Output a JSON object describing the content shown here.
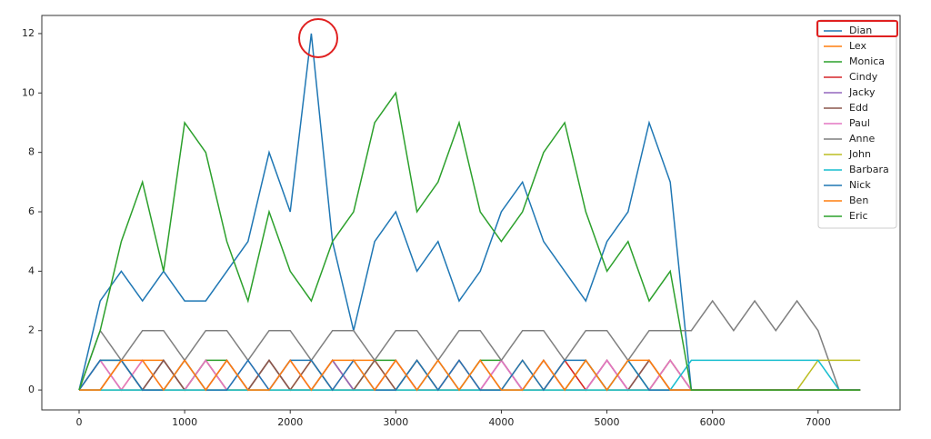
{
  "chart_data": {
    "type": "line",
    "x": [
      0,
      200,
      400,
      600,
      800,
      1000,
      1200,
      1400,
      1600,
      1800,
      2000,
      2200,
      2400,
      2600,
      2800,
      3000,
      3200,
      3400,
      3600,
      3800,
      4000,
      4200,
      4400,
      4600,
      4800,
      5000,
      5200,
      5400,
      5600,
      5800,
      6000,
      6200,
      6400,
      6600,
      6800,
      7000,
      7200,
      7400
    ],
    "xlim": [
      -353,
      7777
    ],
    "xticks": [
      0,
      1000,
      2000,
      3000,
      4000,
      5000,
      6000,
      7000
    ],
    "ylim": [
      -0.67,
      12.61
    ],
    "yticks": [
      0,
      2,
      4,
      6,
      8,
      10,
      12
    ],
    "legend": "upper right",
    "series": [
      {
        "name": "Dian",
        "color": "#1f77b4",
        "values": [
          0,
          3,
          4,
          3,
          4,
          3,
          3,
          4,
          5,
          8,
          6,
          12,
          5,
          2,
          5,
          6,
          4,
          5,
          3,
          4,
          6,
          7,
          5,
          4,
          3,
          5,
          6,
          9,
          7,
          0,
          0,
          0,
          0,
          0,
          0,
          0,
          0,
          0
        ]
      },
      {
        "name": "Lex",
        "color": "#ff7f0e",
        "values": [
          0,
          1,
          0,
          1,
          1,
          0,
          1,
          0,
          0,
          1,
          0,
          1,
          0,
          1,
          1,
          0,
          1,
          0,
          1,
          0,
          0,
          1,
          0,
          1,
          0,
          1,
          0,
          1,
          0,
          0,
          0,
          0,
          0,
          0,
          0,
          0,
          0,
          0
        ]
      },
      {
        "name": "Monica",
        "color": "#2ca02c",
        "values": [
          0,
          1,
          1,
          0,
          1,
          0,
          1,
          1,
          0,
          1,
          0,
          0,
          1,
          0,
          1,
          1,
          0,
          1,
          0,
          1,
          1,
          0,
          1,
          0,
          1,
          0,
          1,
          0,
          1,
          0,
          0,
          0,
          0,
          0,
          0,
          0,
          0,
          0
        ]
      },
      {
        "name": "Cindy",
        "color": "#d62728",
        "values": [
          0,
          0,
          1,
          0,
          0,
          1,
          0,
          1,
          0,
          0,
          1,
          0,
          1,
          0,
          0,
          1,
          0,
          0,
          1,
          0,
          1,
          0,
          0,
          1,
          0,
          1,
          0,
          0,
          1,
          0,
          0,
          0,
          0,
          0,
          0,
          0,
          0,
          0
        ]
      },
      {
        "name": "Jacky",
        "color": "#9467bd",
        "values": [
          0,
          1,
          0,
          0,
          1,
          0,
          0,
          1,
          0,
          1,
          0,
          0,
          1,
          0,
          0,
          1,
          0,
          1,
          0,
          0,
          1,
          0,
          1,
          0,
          0,
          1,
          0,
          1,
          0,
          0,
          0,
          0,
          0,
          0,
          0,
          0,
          0,
          0
        ]
      },
      {
        "name": "Edd",
        "color": "#8c564b",
        "values": [
          0,
          0,
          1,
          0,
          1,
          0,
          1,
          0,
          0,
          1,
          0,
          1,
          0,
          0,
          1,
          0,
          1,
          0,
          0,
          1,
          0,
          0,
          1,
          0,
          1,
          0,
          0,
          1,
          0,
          0,
          0,
          0,
          0,
          0,
          0,
          0,
          0,
          0
        ]
      },
      {
        "name": "Paul",
        "color": "#e377c2",
        "values": [
          0,
          1,
          0,
          1,
          0,
          0,
          1,
          0,
          1,
          0,
          1,
          0,
          0,
          1,
          0,
          1,
          0,
          0,
          1,
          0,
          1,
          0,
          1,
          0,
          0,
          1,
          0,
          0,
          1,
          0,
          0,
          0,
          0,
          0,
          0,
          0,
          0,
          0
        ]
      },
      {
        "name": "Anne",
        "color": "#7f7f7f",
        "values": [
          0,
          2,
          1,
          2,
          2,
          1,
          2,
          2,
          1,
          2,
          2,
          1,
          2,
          2,
          1,
          2,
          2,
          1,
          2,
          2,
          1,
          2,
          2,
          1,
          2,
          2,
          1,
          2,
          2,
          2,
          3,
          2,
          3,
          2,
          3,
          2,
          0,
          0
        ]
      },
      {
        "name": "John",
        "color": "#bcbd22",
        "values": [
          0,
          0,
          0,
          0,
          0,
          0,
          0,
          0,
          0,
          0,
          0,
          0,
          0,
          0,
          0,
          0,
          0,
          0,
          0,
          0,
          0,
          0,
          0,
          0,
          0,
          0,
          0,
          0,
          0,
          0,
          0,
          0,
          0,
          0,
          0,
          1,
          1,
          1
        ]
      },
      {
        "name": "Barbara",
        "color": "#17becf",
        "values": [
          0,
          0,
          0,
          0,
          0,
          0,
          0,
          0,
          0,
          0,
          0,
          0,
          0,
          0,
          0,
          0,
          0,
          0,
          0,
          0,
          0,
          0,
          0,
          0,
          0,
          0,
          0,
          0,
          0,
          1,
          1,
          1,
          1,
          1,
          1,
          1,
          0,
          0
        ]
      },
      {
        "name": "Nick",
        "color": "#1f77b4",
        "values": [
          0,
          1,
          1,
          0,
          0,
          1,
          0,
          0,
          1,
          0,
          1,
          1,
          0,
          1,
          0,
          0,
          1,
          0,
          1,
          0,
          0,
          1,
          0,
          1,
          1,
          0,
          1,
          0,
          0,
          0,
          0,
          0,
          0,
          0,
          0,
          0,
          0,
          0
        ]
      },
      {
        "name": "Ben",
        "color": "#ff7f0e",
        "values": [
          0,
          0,
          1,
          1,
          0,
          1,
          0,
          1,
          0,
          0,
          1,
          0,
          1,
          1,
          0,
          1,
          0,
          1,
          0,
          1,
          0,
          0,
          1,
          0,
          1,
          0,
          1,
          1,
          0,
          0,
          0,
          0,
          0,
          0,
          0,
          0,
          0,
          0
        ]
      },
      {
        "name": "Eric",
        "color": "#2ca02c",
        "values": [
          0,
          2,
          5,
          7,
          4,
          9,
          8,
          5,
          3,
          6,
          4,
          3,
          5,
          6,
          9,
          10,
          6,
          7,
          9,
          6,
          5,
          6,
          8,
          9,
          6,
          4,
          5,
          3,
          4,
          0,
          0,
          0,
          0,
          0,
          0,
          0,
          0,
          0
        ]
      }
    ]
  }
}
